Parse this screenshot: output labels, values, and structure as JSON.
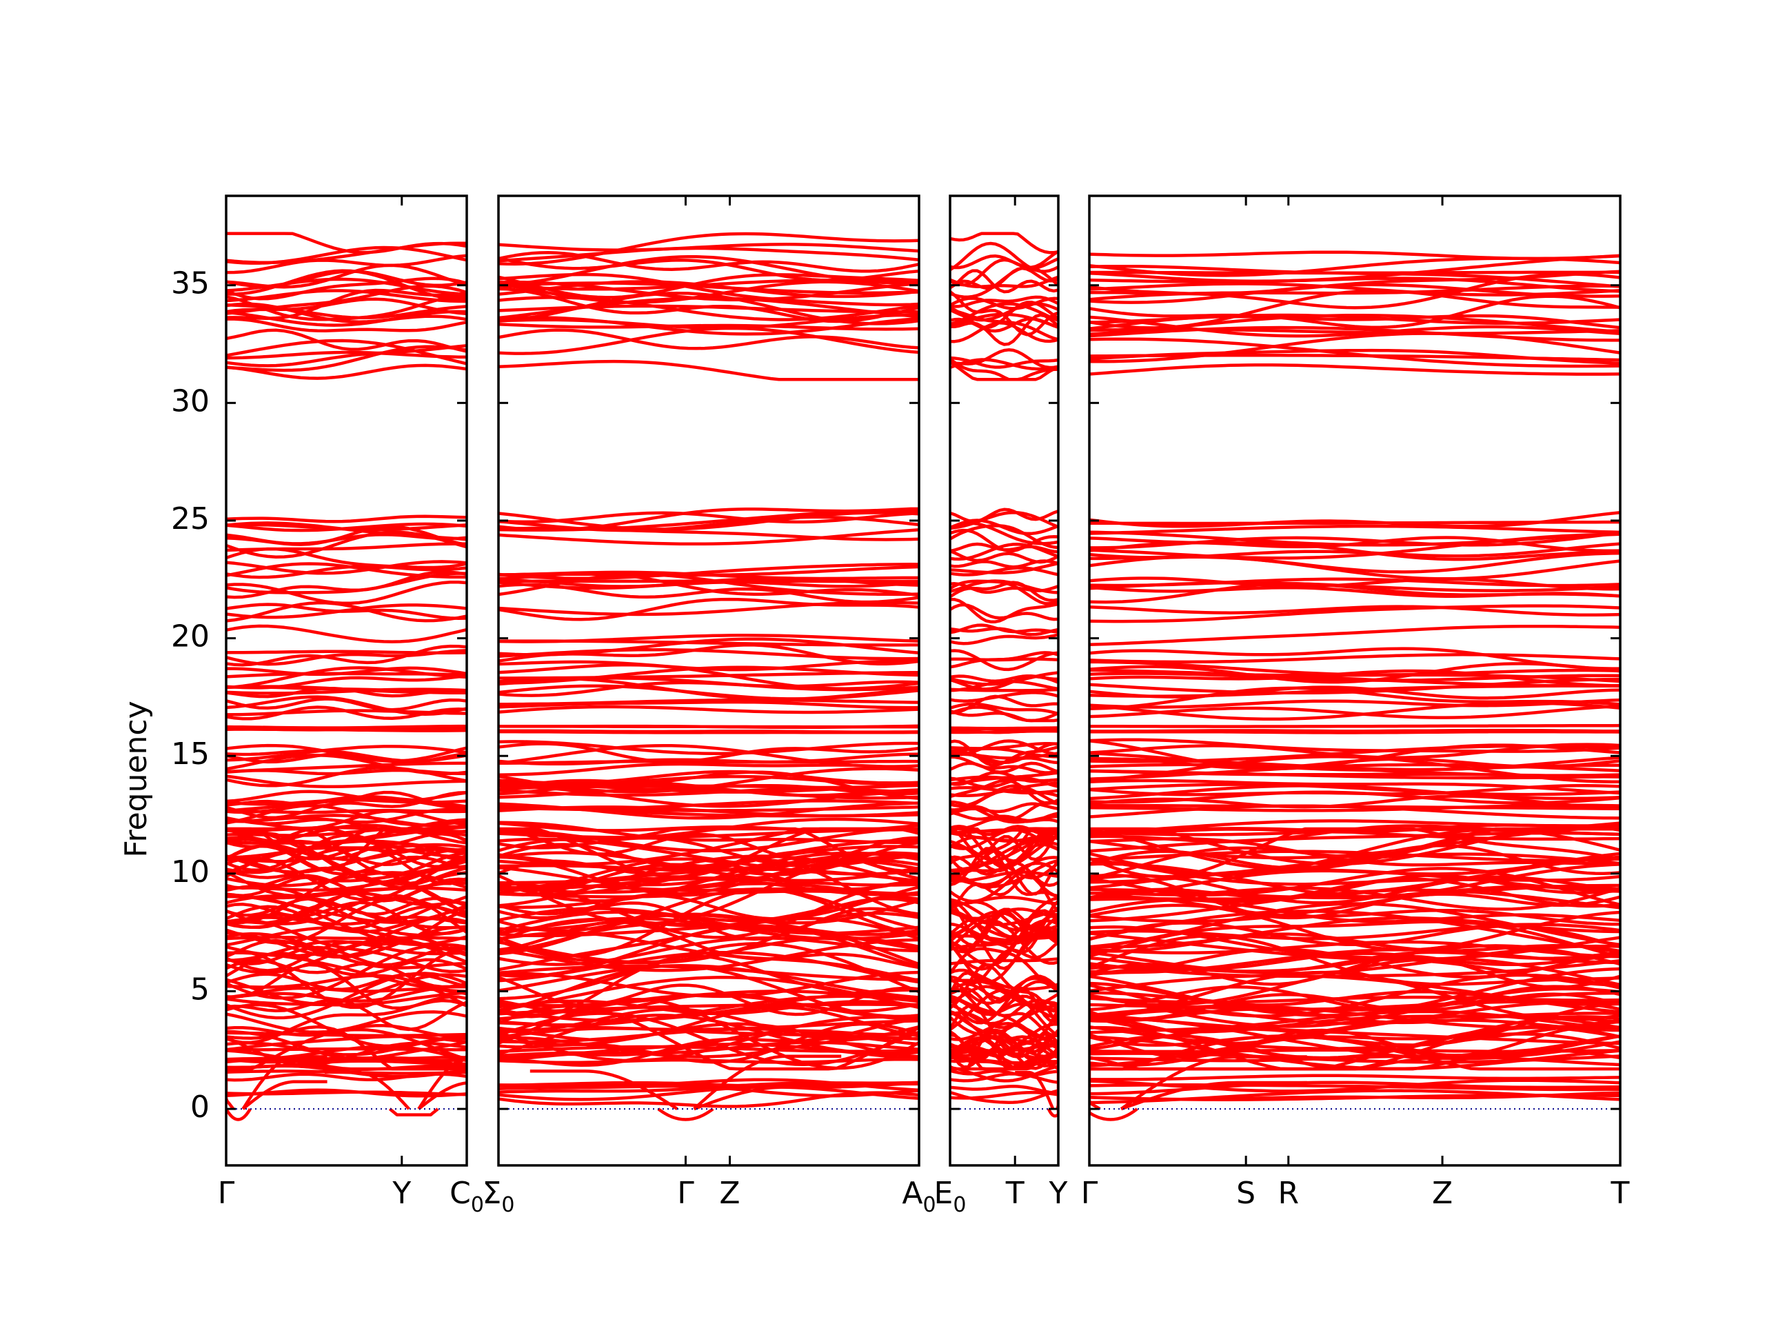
{
  "chart_data": {
    "type": "line",
    "ylabel": "Frequency",
    "ylim": [
      -2.4,
      38.8
    ],
    "yticks": [
      0,
      5,
      10,
      15,
      20,
      25,
      30,
      35
    ],
    "grid": false,
    "legend": "none",
    "colors": {
      "bands": "#ff0000",
      "zero_line": "#00008b",
      "axes": "#000000"
    },
    "panels": [
      {
        "xticks": [
          {
            "pos": 0.0,
            "label": "Γ"
          },
          {
            "pos": 0.73,
            "label": "Y"
          },
          {
            "pos": 1.0,
            "label": "C",
            "sub": "0"
          }
        ],
        "lead_label": null,
        "dips": [
          {
            "t": 0.05,
            "w": 0.05,
            "depth": 0.45
          },
          {
            "t": 0.78,
            "w": 0.1,
            "depth": 0.25,
            "flat": true
          }
        ]
      },
      {
        "xticks": [
          {
            "pos": 0.0,
            "label": "Σ",
            "sub": "0"
          },
          {
            "pos": 0.445,
            "label": "Γ"
          },
          {
            "pos": 0.55,
            "label": "Z"
          },
          {
            "pos": 1.0,
            "label": "A",
            "sub": "0"
          }
        ],
        "dips": [
          {
            "t": 0.445,
            "w": 0.065,
            "depth": 0.45
          }
        ]
      },
      {
        "xticks": [
          {
            "pos": 0.0,
            "label": "E",
            "sub": "0"
          },
          {
            "pos": 0.6,
            "label": "T"
          },
          {
            "pos": 1.0,
            "label": "Y"
          }
        ],
        "dips": [
          {
            "t": 0.97,
            "w": 0.06,
            "depth": 0.3
          }
        ]
      },
      {
        "xticks": [
          {
            "pos": 0.0,
            "label": "Γ"
          },
          {
            "pos": 0.295,
            "label": "S"
          },
          {
            "pos": 0.375,
            "label": "R"
          },
          {
            "pos": 0.665,
            "label": "Z"
          },
          {
            "pos": 1.0,
            "label": "T"
          }
        ],
        "dips": [
          {
            "t": 0.04,
            "w": 0.05,
            "depth": 0.45
          }
        ]
      }
    ],
    "band_groups": [
      {
        "range": [
          31.3,
          36.9
        ],
        "count": 24
      },
      {
        "range": [
          21.0,
          25.2
        ],
        "count": 18
      },
      {
        "range": [
          16.8,
          20.4
        ],
        "count": 16
      },
      {
        "range": [
          16.0,
          16.3
        ],
        "count": 4
      },
      {
        "range": [
          11.6,
          15.4
        ],
        "count": 26
      },
      {
        "range": [
          2.0,
          11.6
        ],
        "count": 80
      },
      {
        "range": [
          0.3,
          2.6
        ],
        "count": 10
      }
    ],
    "zero_line": 0
  }
}
